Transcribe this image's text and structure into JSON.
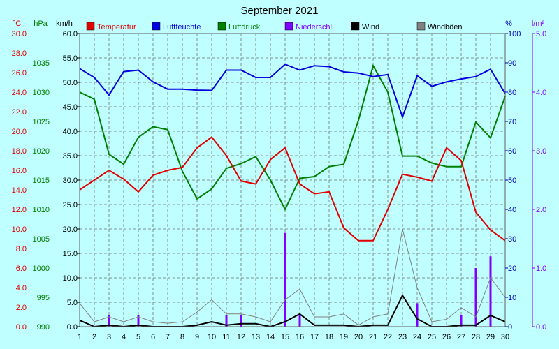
{
  "chart_data": {
    "type": "line",
    "title": "September 2021",
    "x": [
      1,
      2,
      3,
      4,
      5,
      6,
      7,
      8,
      9,
      10,
      11,
      12,
      13,
      14,
      15,
      16,
      17,
      18,
      19,
      20,
      21,
      22,
      23,
      24,
      25,
      26,
      27,
      28,
      29,
      30
    ],
    "axes": {
      "temp": {
        "unit": "°C",
        "range": [
          0,
          30
        ],
        "ticks": [
          "0.0",
          "2.0",
          "4.0",
          "6.0",
          "8.0",
          "10.0",
          "12.0",
          "14.0",
          "16.0",
          "18.0",
          "20.0",
          "22.0",
          "24.0",
          "26.0",
          "28.0",
          "30.0"
        ],
        "color": "#e00000"
      },
      "pressure": {
        "unit": "hPa",
        "range": [
          990,
          1040
        ],
        "ticks": [
          "990",
          "995",
          "1000",
          "1005",
          "1010",
          "1015",
          "1020",
          "1025",
          "1030",
          "1035"
        ],
        "color": "#008000"
      },
      "wind": {
        "unit": "km/h",
        "range": [
          0,
          60
        ],
        "ticks": [
          "0.0",
          "5.0",
          "10.0",
          "15.0",
          "20.0",
          "25.0",
          "30.0",
          "35.0",
          "40.0",
          "45.0",
          "50.0",
          "55.0",
          "60.0"
        ],
        "color": "#000000"
      },
      "humidity": {
        "unit": "%",
        "range": [
          0,
          100
        ],
        "ticks": [
          "0",
          "10",
          "20",
          "30",
          "40",
          "50",
          "60",
          "70",
          "80",
          "90",
          "100"
        ],
        "color": "#0000c0"
      },
      "precip": {
        "unit": "l/m²",
        "range": [
          0,
          5
        ],
        "ticks": [
          "0.0",
          "1.0",
          "2.0",
          "3.0",
          "4.0",
          "5.0"
        ],
        "color": "#8000ff"
      }
    },
    "grid": true,
    "legend_placement": "top",
    "series": [
      {
        "name": "Temperatur",
        "axis": "temp",
        "kind": "line",
        "color": "#e00000",
        "values": [
          14.0,
          15.0,
          16.0,
          15.1,
          13.8,
          15.5,
          16.0,
          16.3,
          18.3,
          19.4,
          17.5,
          14.9,
          14.6,
          17.1,
          18.3,
          14.6,
          13.6,
          13.8,
          10.1,
          8.8,
          8.8,
          12.0,
          15.6,
          15.3,
          14.9,
          18.3,
          17.0,
          11.7,
          9.9,
          8.8
        ]
      },
      {
        "name": "Luftfeuchte",
        "axis": "humidity",
        "kind": "line",
        "color": "#0000e0",
        "values": [
          88.0,
          85.0,
          79.0,
          87.0,
          87.5,
          83.5,
          81.0,
          81.0,
          80.7,
          80.6,
          87.5,
          87.5,
          85.0,
          85.0,
          89.5,
          87.5,
          89.0,
          88.7,
          86.9,
          86.5,
          85.3,
          86.0,
          71.5,
          85.6,
          82.0,
          83.5,
          84.5,
          85.3,
          87.8,
          79.5
        ]
      },
      {
        "name": "Luftdruck",
        "axis": "pressure",
        "kind": "line",
        "color": "#008000",
        "values": [
          1030.0,
          1028.8,
          1019.4,
          1017.7,
          1022.3,
          1024.1,
          1023.6,
          1016.5,
          1011.8,
          1013.5,
          1017.0,
          1017.8,
          1019.0,
          1015.0,
          1010.0,
          1015.3,
          1015.6,
          1017.3,
          1017.7,
          1025.2,
          1034.5,
          1030.0,
          1019.1,
          1019.1,
          1017.9,
          1017.3,
          1017.3,
          1024.9,
          1022.2,
          1029.3
        ]
      },
      {
        "name": "Niederschl.",
        "axis": "precip",
        "kind": "bar",
        "color": "#8000ff",
        "values": [
          0,
          0,
          0.2,
          0,
          0.2,
          0,
          0,
          0,
          0,
          0,
          0.2,
          0.2,
          0,
          0,
          1.6,
          0.2,
          0,
          0,
          0,
          0,
          0,
          0,
          0,
          0.4,
          0,
          0,
          0.2,
          1.0,
          1.2,
          0
        ]
      },
      {
        "name": "Wind",
        "axis": "wind",
        "kind": "line",
        "color": "#000000",
        "values": [
          1.3,
          0.0,
          0.3,
          0.0,
          0.3,
          0.0,
          0.0,
          0.0,
          0.3,
          1.0,
          0.3,
          0.6,
          0.6,
          0.0,
          1.0,
          2.6,
          0.3,
          0.3,
          0.3,
          0.0,
          0.3,
          0.3,
          6.4,
          1.6,
          0.0,
          0.0,
          0.3,
          0.3,
          2.3,
          1.0
        ]
      },
      {
        "name": "Windböen",
        "axis": "wind",
        "kind": "line",
        "color": "#808080",
        "values": [
          4.8,
          1.0,
          2.0,
          1.0,
          2.0,
          1.0,
          0.7,
          1.0,
          3.0,
          5.5,
          2.6,
          2.6,
          2.0,
          1.0,
          5.5,
          7.7,
          2.0,
          2.0,
          2.6,
          0.3,
          2.0,
          2.6,
          20.0,
          8.0,
          1.0,
          1.5,
          3.9,
          2.0,
          10.0,
          6.0
        ]
      }
    ]
  }
}
